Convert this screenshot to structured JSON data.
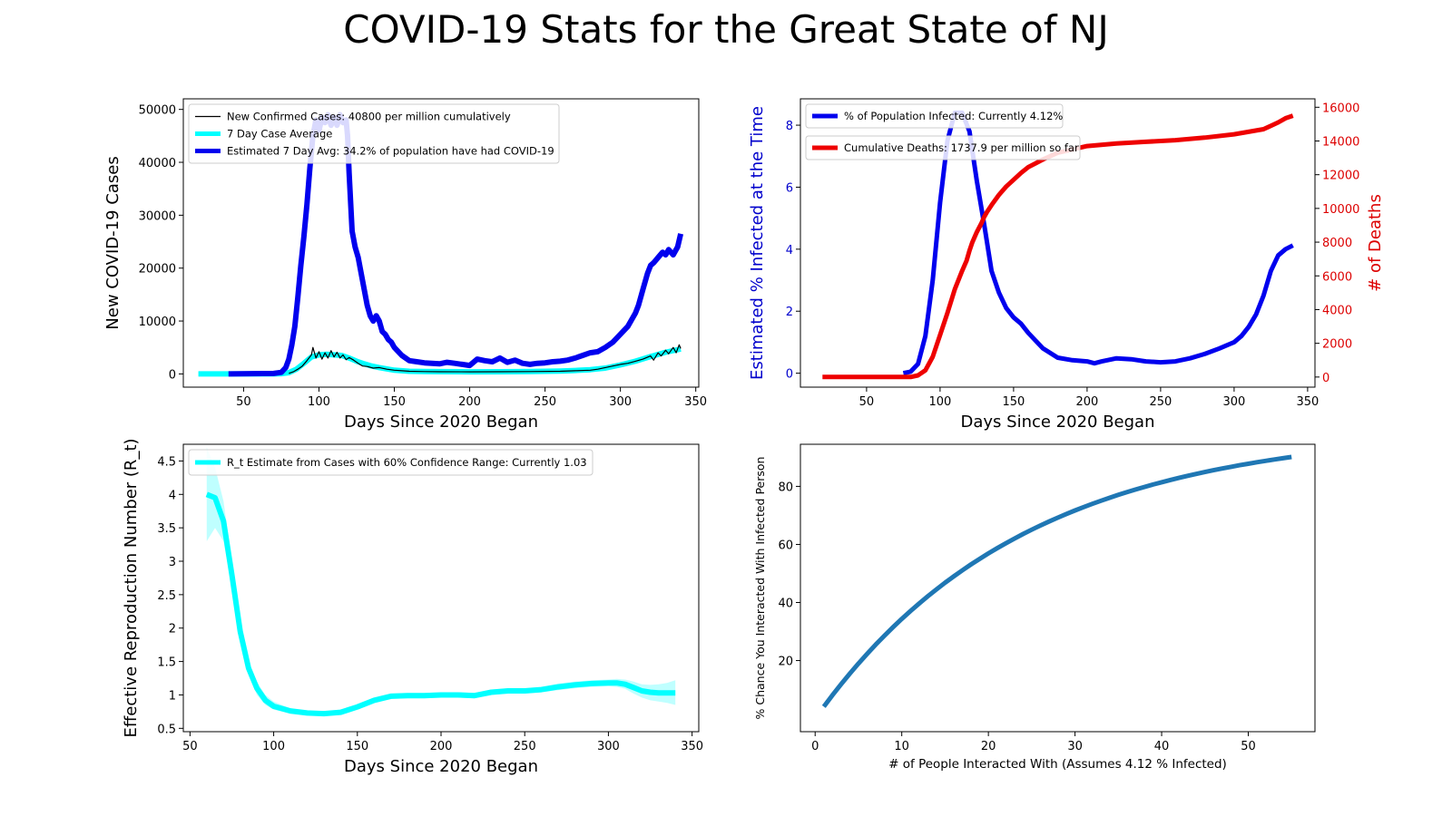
{
  "figure": {
    "title": "COVID-19 Stats for the Great State of NJ"
  },
  "chart_data": [
    {
      "type": "line",
      "panel": "cases",
      "xlabel": "Days Since 2020 Began",
      "ylabel": "New COVID-19 Cases",
      "xlim": [
        10,
        352
      ],
      "ylim": [
        -2500,
        52000
      ],
      "xticks": [
        50,
        100,
        150,
        200,
        250,
        300,
        350
      ],
      "yticks": [
        0,
        10000,
        20000,
        30000,
        40000,
        50000
      ],
      "legend_position": "upper-left",
      "series": [
        {
          "name": "New Confirmed Cases: 40800 per million cumulatively",
          "color": "#000000",
          "x": [
            80,
            83,
            86,
            89,
            92,
            95,
            96,
            98,
            100,
            102,
            104,
            106,
            108,
            110,
            112,
            114,
            116,
            118,
            120,
            123,
            126,
            129,
            132,
            136,
            140,
            145,
            150,
            155,
            160,
            170,
            180,
            200,
            220,
            240,
            260,
            270,
            280,
            285,
            290,
            300,
            305,
            310,
            315,
            320,
            322,
            325,
            327,
            330,
            332,
            335,
            337,
            339,
            340
          ],
          "y": [
            100,
            400,
            900,
            1500,
            2500,
            3600,
            5000,
            3000,
            4200,
            2800,
            4000,
            3000,
            4400,
            3200,
            4100,
            3000,
            3600,
            2700,
            3100,
            2600,
            2000,
            1500,
            1400,
            1100,
            1200,
            900,
            700,
            600,
            500,
            450,
            420,
            400,
            420,
            450,
            500,
            600,
            700,
            900,
            1200,
            1800,
            2000,
            2400,
            2800,
            3400,
            2600,
            4000,
            3400,
            4500,
            3800,
            5000,
            4000,
            5500,
            4800
          ]
        },
        {
          "name": "7 Day Case Average",
          "color": "#00ffff",
          "x": [
            20,
            40,
            60,
            70,
            75,
            80,
            85,
            90,
            95,
            100,
            105,
            110,
            115,
            120,
            125,
            130,
            135,
            140,
            150,
            160,
            170,
            180,
            200,
            220,
            240,
            260,
            270,
            280,
            290,
            300,
            310,
            320,
            330,
            340
          ],
          "y": [
            0,
            0,
            0,
            10,
            60,
            250,
            900,
            2000,
            3200,
            3600,
            3700,
            3600,
            3500,
            3000,
            2400,
            1900,
            1500,
            1200,
            700,
            500,
            450,
            430,
            400,
            420,
            450,
            550,
            650,
            800,
            1100,
            1700,
            2400,
            3300,
            4100,
            4700
          ]
        },
        {
          "name": "Estimated 7 Day Avg: 34.2% of population have had COVID-19",
          "color": "#0000ee",
          "x": [
            40,
            70,
            75,
            78,
            80,
            82,
            84,
            86,
            88,
            90,
            92,
            94,
            96,
            98,
            100,
            102,
            104,
            106,
            108,
            110,
            112,
            114,
            116,
            118,
            119,
            120,
            122,
            124,
            126,
            128,
            130,
            132,
            134,
            136,
            138,
            140,
            142,
            144,
            146,
            148,
            150,
            155,
            160,
            165,
            170,
            175,
            180,
            185,
            190,
            195,
            200,
            205,
            210,
            215,
            220,
            225,
            230,
            235,
            240,
            245,
            250,
            255,
            260,
            265,
            270,
            275,
            280,
            285,
            290,
            295,
            300,
            305,
            310,
            312,
            315,
            318,
            320,
            322,
            325,
            328,
            330,
            332,
            335,
            338,
            340
          ],
          "y": [
            0,
            80,
            300,
            1200,
            2800,
            5500,
            9000,
            14500,
            20500,
            26000,
            32000,
            39000,
            45000,
            48000,
            46000,
            48500,
            47500,
            49000,
            47000,
            48500,
            47000,
            49000,
            47500,
            48000,
            45000,
            38000,
            27000,
            24000,
            22000,
            19000,
            16000,
            13000,
            11000,
            10000,
            11000,
            10000,
            8000,
            7500,
            6500,
            6000,
            5000,
            3500,
            2500,
            2300,
            2100,
            2000,
            1900,
            2200,
            2000,
            1800,
            1600,
            2800,
            2500,
            2300,
            3000,
            2200,
            2600,
            2000,
            1800,
            2000,
            2100,
            2300,
            2400,
            2600,
            3000,
            3500,
            4000,
            4200,
            5000,
            6000,
            7500,
            9000,
            11500,
            13000,
            16000,
            19000,
            20500,
            21000,
            22000,
            23000,
            22500,
            23500,
            22500,
            24000,
            26500
          ]
        }
      ]
    },
    {
      "type": "line",
      "panel": "infected-deaths",
      "xlabel": "Days Since 2020 Began",
      "ylabel": "Estimated % Infected at the Time",
      "ylabel_color": "#0000cc",
      "y2label": "# of Deaths",
      "y2label_color": "#dd0000",
      "xlim": [
        5,
        355
      ],
      "ylim": [
        -0.45,
        8.85
      ],
      "y2lim": [
        -600,
        16500
      ],
      "xticks": [
        50,
        100,
        150,
        200,
        250,
        300,
        350
      ],
      "yticks": [
        0,
        2,
        4,
        6,
        8
      ],
      "y2ticks": [
        0,
        2000,
        4000,
        6000,
        8000,
        10000,
        12000,
        14000,
        16000
      ],
      "legend_position": "upper-left",
      "series": [
        {
          "name": "% of Population Infected: Currently 4.12%",
          "color": "#0000ee",
          "axis": "left",
          "x": [
            75,
            80,
            85,
            90,
            95,
            100,
            105,
            110,
            115,
            120,
            125,
            130,
            135,
            140,
            145,
            150,
            155,
            160,
            170,
            180,
            190,
            200,
            205,
            210,
            220,
            230,
            240,
            250,
            260,
            270,
            280,
            290,
            300,
            305,
            310,
            315,
            320,
            325,
            330,
            335,
            340
          ],
          "y": [
            0.0,
            0.05,
            0.3,
            1.2,
            3.0,
            5.5,
            7.5,
            8.4,
            8.4,
            7.8,
            6.2,
            4.8,
            3.3,
            2.6,
            2.1,
            1.8,
            1.6,
            1.3,
            0.8,
            0.5,
            0.42,
            0.38,
            0.32,
            0.38,
            0.48,
            0.45,
            0.38,
            0.35,
            0.38,
            0.48,
            0.62,
            0.8,
            1.0,
            1.2,
            1.5,
            1.9,
            2.5,
            3.3,
            3.8,
            4.0,
            4.12
          ]
        },
        {
          "name": "Cumulative Deaths: 1737.9 per million so far",
          "color": "#ee0000",
          "axis": "right",
          "x": [
            20,
            80,
            85,
            90,
            95,
            100,
            105,
            110,
            115,
            118,
            120,
            122,
            125,
            128,
            130,
            132,
            135,
            140,
            145,
            150,
            155,
            160,
            170,
            180,
            190,
            200,
            220,
            240,
            260,
            280,
            300,
            320,
            330,
            335,
            340
          ],
          "y": [
            0,
            0,
            100,
            400,
            1200,
            2500,
            3800,
            5200,
            6300,
            6900,
            7500,
            8000,
            8600,
            9100,
            9500,
            9800,
            10200,
            10800,
            11300,
            11700,
            12100,
            12450,
            12900,
            13300,
            13500,
            13700,
            13850,
            13950,
            14050,
            14200,
            14400,
            14700,
            15100,
            15350,
            15500
          ]
        }
      ]
    },
    {
      "type": "line",
      "panel": "rt",
      "xlabel": "Days Since 2020 Began",
      "ylabel": "Effective Reproduction Number (R_t)",
      "xlim": [
        46,
        354
      ],
      "ylim": [
        0.45,
        4.75
      ],
      "xticks": [
        50,
        100,
        150,
        200,
        250,
        300,
        350
      ],
      "yticks": [
        0.5,
        1.0,
        1.5,
        2.0,
        2.5,
        3.0,
        3.5,
        4.0,
        4.5
      ],
      "legend_position": "upper-left",
      "series": [
        {
          "name": "R_t Estimate from Cases with 60% Confidence Range: Currently 1.03",
          "color": "#00ffff",
          "x": [
            60,
            65,
            70,
            75,
            80,
            85,
            90,
            95,
            100,
            110,
            120,
            130,
            140,
            150,
            160,
            170,
            180,
            190,
            200,
            210,
            220,
            230,
            240,
            250,
            260,
            270,
            280,
            290,
            300,
            305,
            310,
            315,
            320,
            325,
            330,
            335,
            340
          ],
          "y": [
            4.0,
            3.95,
            3.6,
            2.8,
            1.95,
            1.4,
            1.1,
            0.92,
            0.83,
            0.76,
            0.73,
            0.72,
            0.74,
            0.82,
            0.92,
            0.98,
            0.99,
            0.99,
            1.0,
            1.0,
            0.99,
            1.04,
            1.06,
            1.06,
            1.08,
            1.12,
            1.15,
            1.17,
            1.18,
            1.18,
            1.16,
            1.11,
            1.06,
            1.04,
            1.03,
            1.03,
            1.03
          ],
          "lower": [
            3.3,
            3.5,
            3.3,
            2.6,
            1.8,
            1.3,
            1.0,
            0.85,
            0.78,
            0.72,
            0.7,
            0.69,
            0.71,
            0.78,
            0.88,
            0.94,
            0.95,
            0.95,
            0.96,
            0.96,
            0.95,
            1.0,
            1.02,
            1.02,
            1.04,
            1.07,
            1.1,
            1.12,
            1.13,
            1.12,
            1.09,
            1.02,
            0.96,
            0.92,
            0.9,
            0.88,
            0.85
          ],
          "upper": [
            4.7,
            4.4,
            3.9,
            3.0,
            2.1,
            1.5,
            1.2,
            1.0,
            0.9,
            0.8,
            0.76,
            0.75,
            0.78,
            0.86,
            0.96,
            1.02,
            1.03,
            1.03,
            1.04,
            1.04,
            1.03,
            1.08,
            1.1,
            1.1,
            1.12,
            1.17,
            1.2,
            1.22,
            1.23,
            1.24,
            1.23,
            1.2,
            1.16,
            1.15,
            1.16,
            1.18,
            1.22
          ]
        }
      ]
    },
    {
      "type": "line",
      "panel": "interaction",
      "xlabel": "# of People Interacted With (Assumes 4.12 % Infected)",
      "ylabel": "% Chance You Interacted With Infected Person",
      "xlim": [
        -1.7,
        57.7
      ],
      "ylim": [
        -4.5,
        94.5
      ],
      "xticks": [
        0,
        10,
        20,
        30,
        40,
        50
      ],
      "yticks": [
        20,
        40,
        60,
        80
      ],
      "infected_fraction": 0.0412,
      "n_range": [
        1,
        55
      ],
      "series": [
        {
          "name": "",
          "color": "#1f77b4"
        }
      ]
    }
  ]
}
